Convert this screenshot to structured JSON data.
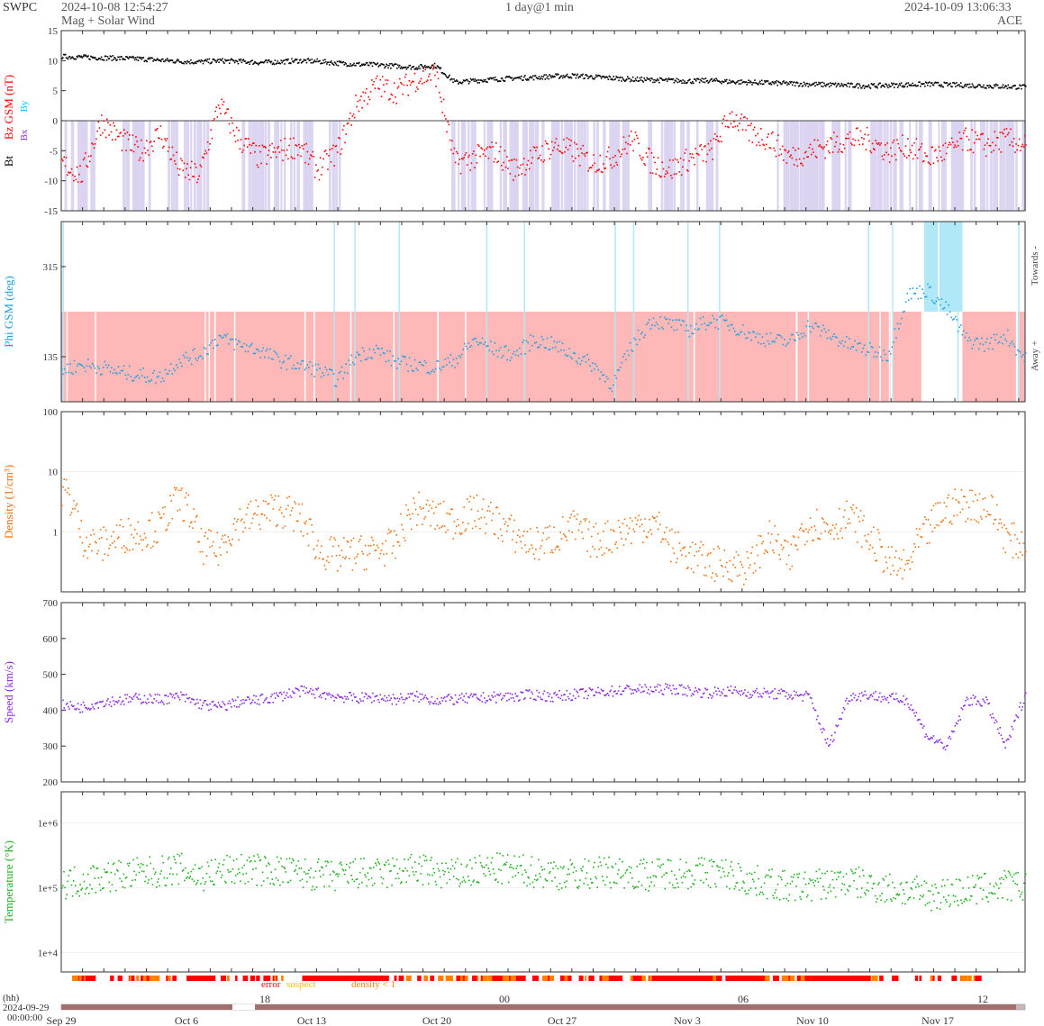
{
  "header": {
    "org": "SWPC",
    "start_time": "2024-10-08 12:54:27",
    "subtitle": "Mag + Solar Wind",
    "resolution": "1 day@1 min",
    "end_time": "2024-10-09 13:06:33",
    "spacecraft": "ACE"
  },
  "colors": {
    "bt": "#000000",
    "bz": "#ff0000",
    "bx": "#8a2be2",
    "by": "#00bfff",
    "phi": "#1ea0e0",
    "density": "#f07010",
    "speed": "#8a2be2",
    "temperature": "#20b020",
    "shade_bz": "#d8d0f0",
    "shade_away": "#ffb8b8",
    "shade_towards": "#b0e8f8",
    "error": "#ff0000",
    "suspect": "#ffc000",
    "density_lt1": "#ff7f00"
  },
  "chart_data": [
    {
      "type": "scatter",
      "panel": "mag",
      "ylabel_parts": [
        "Bt",
        "Bz GSM (nT)",
        "Bx",
        "By"
      ],
      "ylim": [
        -15,
        15
      ],
      "yticks": [
        15,
        10,
        5,
        0,
        -5,
        -10,
        -15
      ],
      "series": [
        {
          "name": "Bt",
          "values": [
            10.8,
            10.7,
            10.6,
            10.5,
            10.4,
            10.2,
            10.0,
            9.9,
            10.1,
            10.0,
            9.8,
            9.9,
            10.1,
            10.0,
            9.7,
            9.5,
            9.4,
            9.2,
            9.0,
            9.3,
            6.5,
            6.8,
            7.0,
            7.2,
            7.3,
            7.5,
            7.6,
            7.4,
            7.2,
            7.0,
            6.9,
            6.8,
            6.7,
            6.8,
            6.6,
            6.5,
            6.4,
            6.3,
            6.2,
            6.1,
            6.0,
            5.9,
            6.0,
            6.1,
            6.2,
            6.1,
            6.0,
            5.9,
            5.8,
            5.7
          ]
        },
        {
          "name": "Bz",
          "values": [
            -7,
            -9,
            0,
            -3,
            -5,
            -2,
            -8,
            -9,
            3,
            -3,
            -6,
            -5,
            -4,
            -8,
            -5,
            3,
            6,
            5,
            7,
            8,
            -7,
            -6,
            -5,
            -8,
            -6,
            -4,
            -5,
            -7,
            -6,
            -3,
            -7,
            -8,
            -6,
            -5,
            1,
            -2,
            -3,
            -6,
            -5,
            -4,
            -3,
            -3,
            -5,
            -4,
            -6,
            -5,
            -3,
            -4,
            -3,
            -4
          ]
        },
        {
          "name": "Bx",
          "values": []
        },
        {
          "name": "By",
          "values": []
        }
      ]
    },
    {
      "type": "scatter",
      "panel": "phi",
      "ylabel": "Phi GSM (deg)",
      "ylim": [
        45,
        405
      ],
      "yticks": [
        315,
        135
      ],
      "right_labels": [
        "Towards -",
        "Away +"
      ],
      "series": [
        {
          "name": "Phi",
          "values": [
            110,
            120,
            115,
            105,
            100,
            95,
            130,
            140,
            175,
            160,
            150,
            130,
            120,
            110,
            90,
            140,
            150,
            125,
            120,
            115,
            130,
            170,
            150,
            140,
            170,
            160,
            140,
            120,
            80,
            160,
            210,
            200,
            190,
            210,
            200,
            180,
            170,
            165,
            200,
            180,
            160,
            150,
            140,
            260,
            270,
            230,
            170,
            160,
            180,
            130
          ]
        }
      ]
    },
    {
      "type": "scatter",
      "panel": "density",
      "ylabel": "Density (1/cm³)",
      "yscale": "log",
      "ylim": [
        0.1,
        100
      ],
      "yticks": [
        100,
        10,
        1
      ],
      "series": [
        {
          "name": "Density",
          "values": [
            5.5,
            0.8,
            0.6,
            0.9,
            1.0,
            1.2,
            3.5,
            0.6,
            0.5,
            1.5,
            2.0,
            2.5,
            1.8,
            0.5,
            0.4,
            0.45,
            0.5,
            0.6,
            2.5,
            1.8,
            1.5,
            2.2,
            1.6,
            0.9,
            0.6,
            0.8,
            1.2,
            0.7,
            0.9,
            1.2,
            1.5,
            0.6,
            0.4,
            0.3,
            0.3,
            0.25,
            0.8,
            0.3,
            1.5,
            1.2,
            1.8,
            0.8,
            0.3,
            0.25,
            1.0,
            2.5,
            3.0,
            2.8,
            0.8,
            0.6
          ]
        }
      ]
    },
    {
      "type": "scatter",
      "panel": "speed",
      "ylabel": "Speed (km/s)",
      "ylim": [
        200,
        700
      ],
      "yticks": [
        700,
        600,
        500,
        400,
        300,
        200
      ],
      "series": [
        {
          "name": "Speed",
          "values": [
            415,
            410,
            425,
            430,
            435,
            432,
            440,
            420,
            410,
            425,
            430,
            440,
            455,
            450,
            440,
            435,
            438,
            432,
            440,
            430,
            432,
            435,
            438,
            440,
            445,
            440,
            445,
            450,
            455,
            460,
            458,
            462,
            455,
            450,
            455,
            450,
            448,
            445,
            440,
            300,
            440,
            445,
            435,
            430,
            330,
            300,
            430,
            425,
            300,
            450
          ]
        }
      ]
    },
    {
      "type": "scatter",
      "panel": "temperature",
      "ylabel": "Temperature (°K)",
      "yscale": "log",
      "ylim": [
        5000,
        3000000
      ],
      "yticks_labels": [
        "1e+6",
        "1e+5",
        "1e+4"
      ],
      "series": [
        {
          "name": "Temperature",
          "values": [
            120000,
            130000,
            150000,
            160000,
            170000,
            180000,
            200000,
            150000,
            180000,
            200000,
            190000,
            180000,
            170000,
            160000,
            150000,
            170000,
            160000,
            180000,
            200000,
            170000,
            160000,
            180000,
            200000,
            190000,
            180000,
            170000,
            160000,
            170000,
            180000,
            170000,
            160000,
            180000,
            170000,
            180000,
            160000,
            130000,
            120000,
            100000,
            110000,
            120000,
            130000,
            110000,
            100000,
            90000,
            80000,
            85000,
            90000,
            100000,
            110000,
            100000
          ]
        }
      ]
    }
  ],
  "status_bar": {
    "error_label": "error",
    "suspect_label": "suspect",
    "density_label": "density < 1"
  },
  "time_axis": {
    "hours_label": "(hh)",
    "origin_date": "2024-09-29",
    "origin_time": "00:00:00",
    "top_ticks": [
      "18",
      "00",
      "06",
      "12"
    ],
    "date_ticks": [
      "Sep 29",
      "Oct 6",
      "Oct 13",
      "Oct 20",
      "Oct 27",
      "Nov 3",
      "Nov 10",
      "Nov 17"
    ]
  }
}
